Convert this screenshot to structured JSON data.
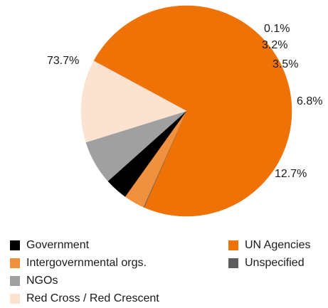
{
  "chart_data": {
    "type": "pie",
    "title": "",
    "slices": [
      {
        "name": "UN Agencies",
        "value": 73.7,
        "label": "73.7%",
        "color": "#ee7206"
      },
      {
        "name": "Unspecified",
        "value": 0.1,
        "label": "0.1%",
        "color": "#5d5d5d"
      },
      {
        "name": "Intergovernmental orgs.",
        "value": 3.2,
        "label": "3.2%",
        "color": "#f0913f"
      },
      {
        "name": "Government",
        "value": 3.5,
        "label": "3.5%",
        "color": "#000000"
      },
      {
        "name": "NGOs",
        "value": 6.8,
        "label": "6.8%",
        "color": "#a0a0a0"
      },
      {
        "name": "Red Cross / Red Crescent",
        "value": 12.7,
        "label": "12.7%",
        "color": "#fbe2d1"
      }
    ],
    "legend": [
      {
        "label": "Government",
        "color": "#000000"
      },
      {
        "label": "Intergovernmental orgs.",
        "color": "#f0913f"
      },
      {
        "label": "NGOs",
        "color": "#a0a0a0"
      },
      {
        "label": "Red Cross / Red Crescent",
        "color": "#fbe2d1"
      },
      {
        "label": "UN Agencies",
        "color": "#ee7206"
      },
      {
        "label": "Unspecified",
        "color": "#5d5d5d"
      }
    ],
    "legend_position": "bottom"
  }
}
